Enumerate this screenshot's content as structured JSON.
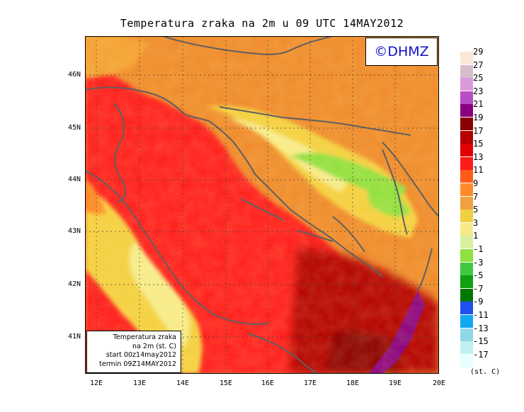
{
  "title": "Temperatura zraka na 2m u 09 UTC 14MAY2012",
  "logo_text": "©DHMZ",
  "info_box": {
    "line1": "Temperatura zraka",
    "line2": "na 2m (st. C)",
    "line3": "start 00z14may2012",
    "line4": "termin 09Z14MAY2012"
  },
  "lat_labels": [
    "46N",
    "45N",
    "44N",
    "43N",
    "42N",
    "41N"
  ],
  "lon_labels": [
    "12E",
    "13E",
    "14E",
    "15E",
    "16E",
    "17E",
    "18E",
    "19E",
    "20E"
  ],
  "legend": {
    "unit": "(st. C)",
    "labels": [
      "29",
      "27",
      "25",
      "23",
      "21",
      "19",
      "17",
      "15",
      "13",
      "11",
      "9",
      "7",
      "5",
      "3",
      "1",
      "-1",
      "-3",
      "-5",
      "-7",
      "-9",
      "-11",
      "-13",
      "-15",
      "-17"
    ],
    "colors": [
      "#fbe8d8",
      "#d8bccc",
      "#d89ad8",
      "#b84ec4",
      "#8b0080",
      "#8b0000",
      "#b40000",
      "#e00000",
      "#ff1a1a",
      "#ff5a1a",
      "#ff8a28",
      "#f0a040",
      "#f0d040",
      "#f5e98a",
      "#d8f0a0",
      "#90e040",
      "#40c840",
      "#10a010",
      "#007800",
      "#2050f0",
      "#10a8f0",
      "#90d8e8",
      "#c0f0f0",
      "#e8ffff"
    ]
  }
}
